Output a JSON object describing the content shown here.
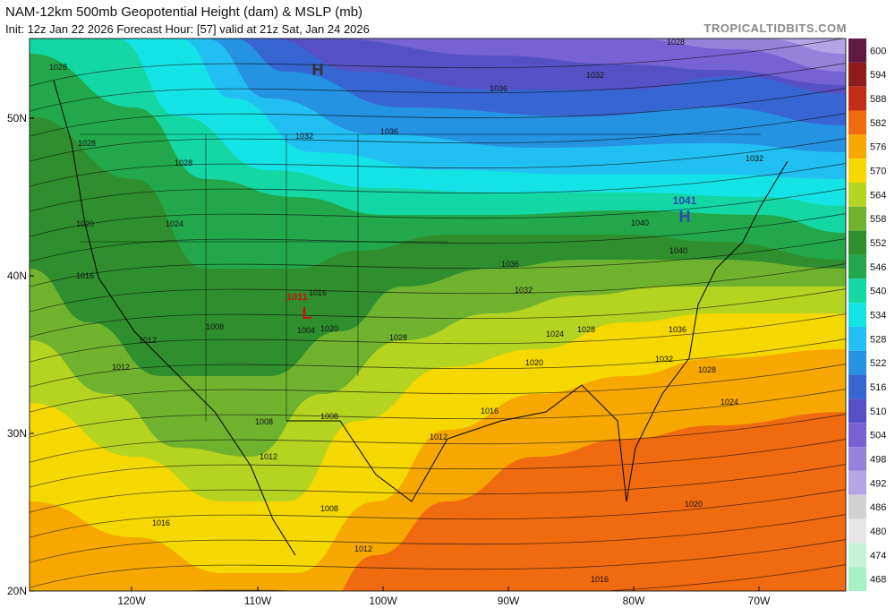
{
  "header": {
    "title": "NAM-12km 500mb Geopotential Height (dam) & MSLP (mb)",
    "subtitle": "Init: 12z Jan 22 2026   Forecast Hour: [57]   valid at 21z Sat, Jan 24 2026",
    "site": "TROPICALTIDBITS.COM"
  },
  "map": {
    "lat_labels": [
      "50N",
      "40N",
      "30N",
      "20N"
    ],
    "lon_labels": [
      "120W",
      "110W",
      "100W",
      "90W",
      "80W",
      "70W"
    ],
    "markers": [
      "H",
      "1041",
      "H",
      "1011",
      "L"
    ],
    "contour_labels": [
      "1028",
      "1028",
      "1028",
      "1032",
      "1036",
      "1036",
      "1032",
      "1028",
      "1024",
      "1020",
      "1016",
      "1012",
      "1012",
      "1008",
      "1016",
      "1004",
      "1020",
      "1028",
      "1036",
      "1032",
      "1024",
      "1028",
      "1036",
      "1040",
      "1040",
      "1032",
      "1028",
      "1024",
      "1020",
      "1016",
      "1012",
      "1008",
      "1008",
      "1012",
      "1008",
      "1012",
      "1016",
      "1016",
      "1020",
      "1032"
    ]
  },
  "colorbar": {
    "levels": [
      600,
      594,
      588,
      582,
      576,
      570,
      564,
      558,
      552,
      546,
      540,
      534,
      528,
      522,
      516,
      510,
      504,
      498,
      492,
      486,
      480,
      474,
      468
    ],
    "colors": [
      "#5e1a40",
      "#8e1c1c",
      "#c22d18",
      "#f06a10",
      "#f7a800",
      "#f5d800",
      "#b5d321",
      "#6fb22e",
      "#2f8f2e",
      "#22a84a",
      "#14d7a3",
      "#14e3e6",
      "#22c0f2",
      "#2592e2",
      "#3766d2",
      "#5551c4",
      "#7762d4",
      "#9483da",
      "#b4a5e4",
      "#d2d2d2",
      "#e6e6e6",
      "#c6f3d6",
      "#a3f1c4"
    ]
  }
}
